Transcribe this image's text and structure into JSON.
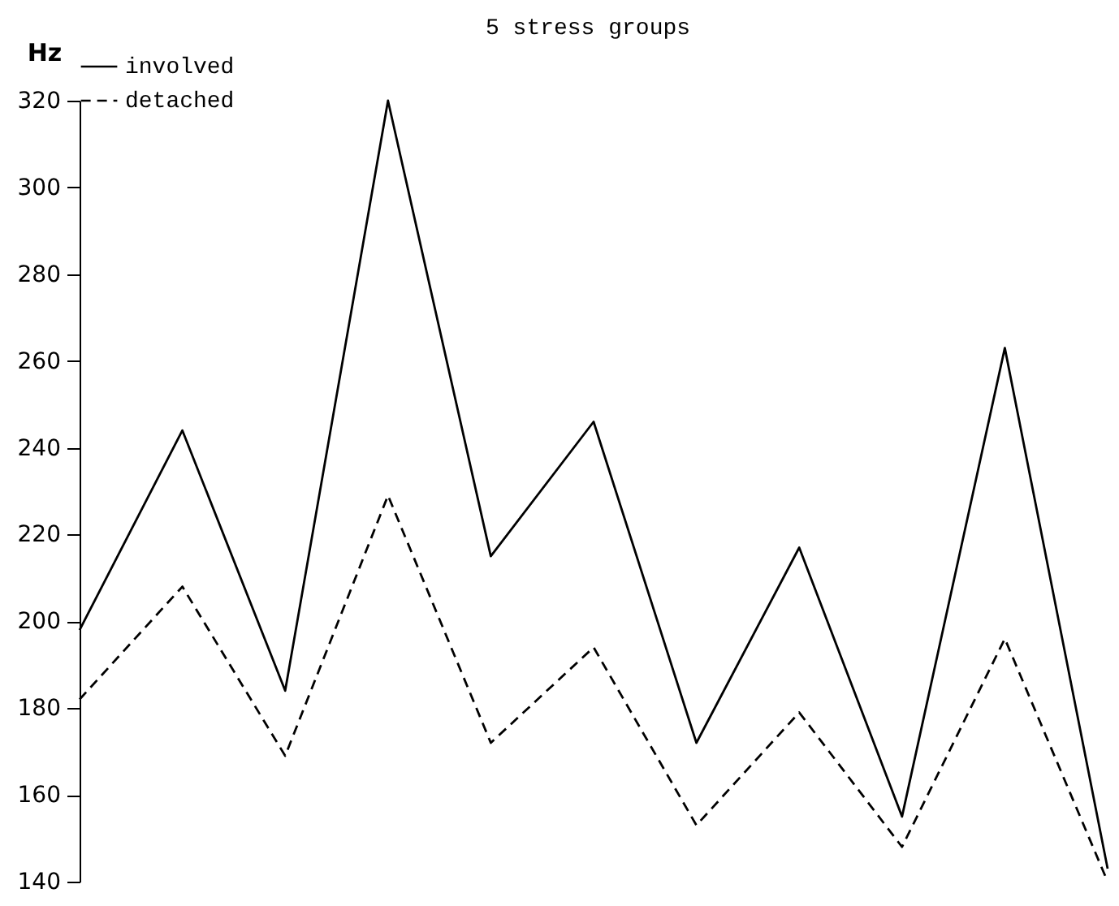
{
  "chart_data": {
    "type": "line",
    "ylabel": "Hz",
    "categories": [
      null,
      null,
      null,
      null,
      null,
      null,
      null,
      null,
      null,
      null,
      null
    ],
    "series": [
      {
        "name": "involved",
        "color": "#000000",
        "line_style": "solid",
        "values": [
          198,
          244,
          184,
          320,
          215,
          246,
          172,
          217,
          155,
          263,
          143
        ]
      },
      {
        "name": "detached",
        "color": "#000000",
        "line_style": "dashed",
        "values": [
          182,
          208,
          169,
          229,
          172,
          194,
          153,
          179,
          148,
          196,
          140
        ]
      }
    ],
    "ylim": [
      140,
      320
    ],
    "yticks": [
      140,
      160,
      180,
      200,
      220,
      240,
      260,
      280,
      300,
      320
    ],
    "annotations": [
      "5 stress groups"
    ],
    "legend": "top",
    "grid": false,
    "marker": "none",
    "tick_labels": "y"
  }
}
